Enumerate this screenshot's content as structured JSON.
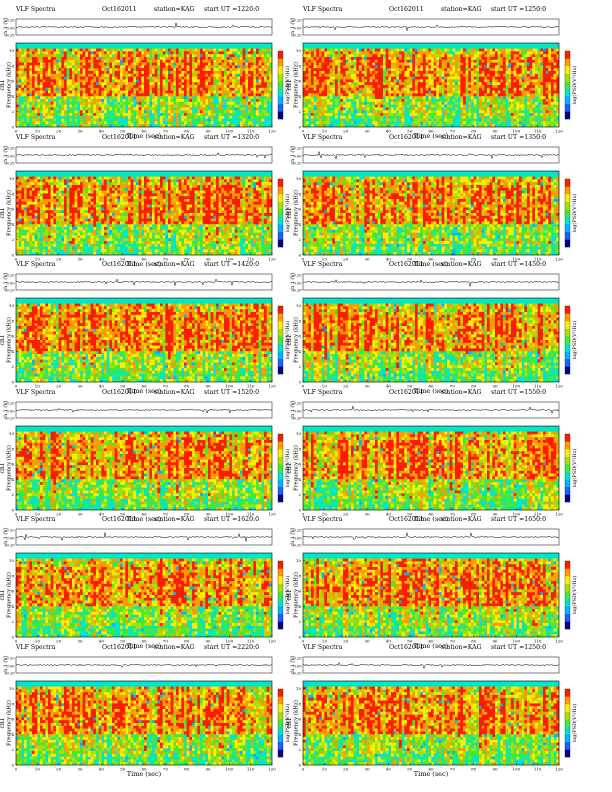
{
  "page": {
    "background": "#ffffff"
  },
  "common": {
    "title": "VLF Spectra",
    "date": "Oct162011",
    "station": "station=KAG",
    "start_prefix": "start  UT =",
    "top_ylabel": "ch 1 (V)",
    "top_yticks": [
      "0.20",
      "0.00",
      "-0.20"
    ],
    "ylabel_ch": "ch1",
    "ylabel_freq": "Frequency (kHz)",
    "xlabel": "Time (sec)",
    "colorbar_label": "log(PSD(V²/Hz)",
    "x_ticks": [
      "0",
      "10",
      "20",
      "30",
      "40",
      "50",
      "60",
      "70",
      "80",
      "90",
      "100",
      "110",
      "120"
    ],
    "y_ticks": [
      "0",
      "2",
      "4",
      "6",
      "8",
      "10"
    ]
  },
  "panels": [
    {
      "id": "p1",
      "start_ut": "1220:0"
    },
    {
      "id": "p2",
      "start_ut": "1250:0"
    },
    {
      "id": "p3",
      "start_ut": "1320:0"
    },
    {
      "id": "p4",
      "start_ut": "1350:0"
    },
    {
      "id": "p5",
      "start_ut": "1420:0"
    },
    {
      "id": "p6",
      "start_ut": "1450:0"
    },
    {
      "id": "p7",
      "start_ut": "1520:0"
    },
    {
      "id": "p8",
      "start_ut": "1550:0"
    },
    {
      "id": "p9",
      "start_ut": "1620:0"
    },
    {
      "id": "p10",
      "start_ut": "1650:0"
    },
    {
      "id": "p11",
      "start_ut": "2220:0"
    },
    {
      "id": "p12",
      "start_ut": "1250:0"
    }
  ],
  "chart_data": {
    "type": "heatmap",
    "x_range_sec": [
      0,
      120
    ],
    "y_range_khz": [
      0,
      11
    ],
    "top_trace_range_v": [
      -0.2,
      0.2
    ],
    "colormap": [
      "#00008b",
      "#1f5fff",
      "#00b4ff",
      "#00e6c8",
      "#4ce62e",
      "#a8e00a",
      "#ffee00",
      "#ff9a00",
      "#ff1a00"
    ],
    "colors": {
      "high": "#ff1a00",
      "mid": "#ffee00",
      "low": "#4ce62e",
      "background": "#00e6c8"
    }
  }
}
